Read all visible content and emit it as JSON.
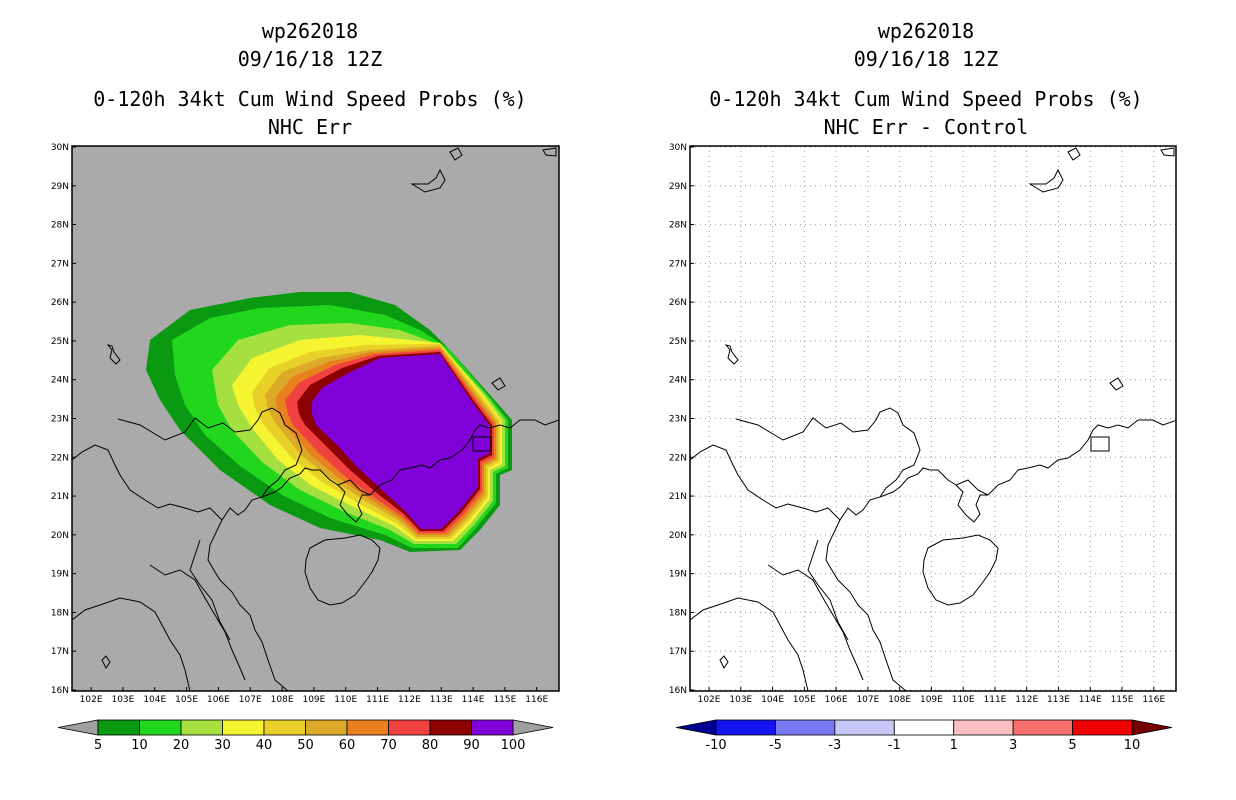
{
  "left": {
    "title_line1": "wp262018",
    "title_line2": "09/16/18 12Z",
    "title_line3": "0-120h 34kt Cum Wind Speed Probs (%)",
    "title_line4": "NHC Err",
    "colorbar_labels": [
      "5",
      "10",
      "20",
      "30",
      "40",
      "50",
      "60",
      "70",
      "80",
      "90",
      "100"
    ],
    "colorbar_colors": [
      "#0a9a12",
      "#22d61e",
      "#a6e040",
      "#f4f430",
      "#e8d028",
      "#dcaa28",
      "#e88020",
      "#f04040",
      "#8c0000",
      "#8000d8"
    ],
    "lat_labels": [
      "30N",
      "29N",
      "28N",
      "27N",
      "26N",
      "25N",
      "24N",
      "23N",
      "22N",
      "21N",
      "20N",
      "19N",
      "18N",
      "17N",
      "16N"
    ],
    "lon_labels": [
      "102E",
      "103E",
      "104E",
      "105E",
      "106E",
      "107E",
      "108E",
      "109E",
      "110E",
      "111E",
      "112E",
      "113E",
      "114E",
      "115E",
      "116E"
    ]
  },
  "right": {
    "title_line1": "wp262018",
    "title_line2": "09/16/18 12Z",
    "title_line3": "0-120h 34kt Cum Wind Speed Probs (%)",
    "title_line4": "NHC Err - Control",
    "colorbar_labels": [
      "-10",
      "-5",
      "-3",
      "-1",
      "1",
      "3",
      "5",
      "10"
    ],
    "colorbar_colors": [
      "#000090",
      "#1414f0",
      "#7878f0",
      "#c8c8f8",
      "#ffffff",
      "#f8c0c0",
      "#f87070",
      "#f00000",
      "#780000"
    ],
    "lat_labels": [
      "30N",
      "29N",
      "28N",
      "27N",
      "26N",
      "25N",
      "24N",
      "23N",
      "22N",
      "21N",
      "20N",
      "19N",
      "18N",
      "17N",
      "16N"
    ],
    "lon_labels": [
      "102E",
      "103E",
      "104E",
      "105E",
      "106E",
      "107E",
      "108E",
      "109E",
      "110E",
      "111E",
      "112E",
      "113E",
      "114E",
      "115E",
      "116E"
    ]
  }
}
